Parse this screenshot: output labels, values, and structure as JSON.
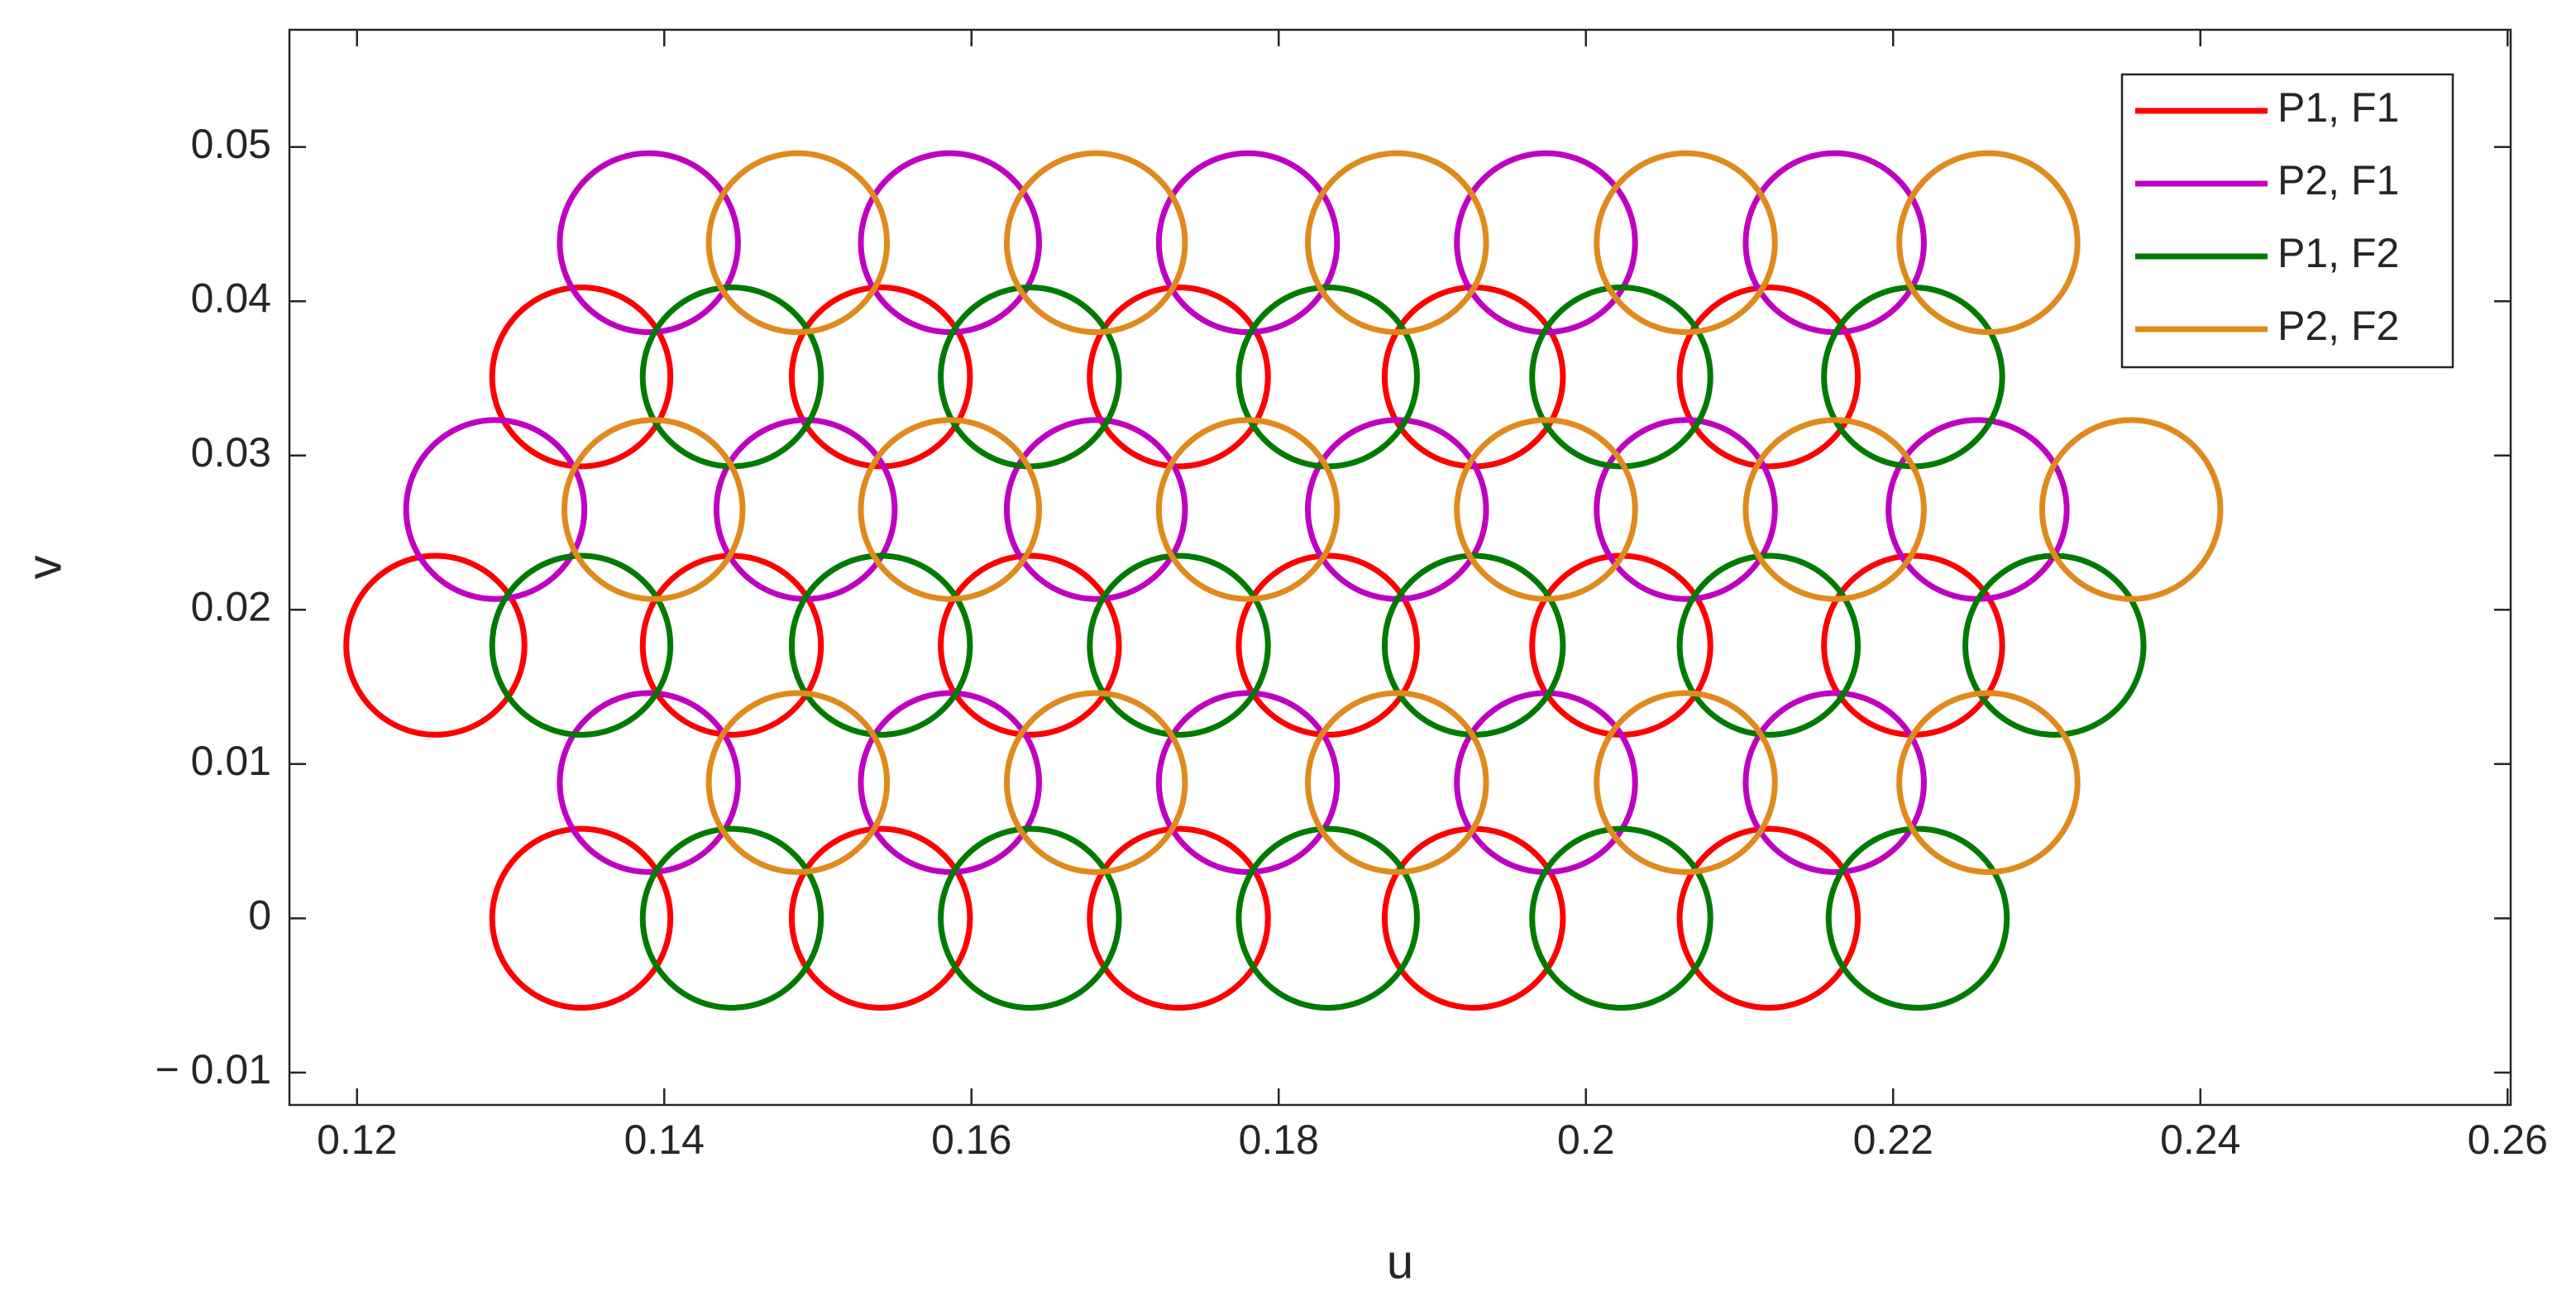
{
  "chart_data": {
    "type": "circles",
    "x_label": "u",
    "y_label": "v",
    "xlim": [
      0.1156,
      0.2602
    ],
    "ylim": [
      -0.0121,
      0.0576
    ],
    "xticks": [
      0.12,
      0.14,
      0.16,
      0.18,
      0.2,
      0.22,
      0.24,
      0.26
    ],
    "yticks": [
      {
        "value": -0.01,
        "label": "− 0.01"
      },
      0,
      0.01,
      0.02,
      0.03,
      0.04,
      0.05
    ],
    "radius": 0.0058,
    "legend": "upper-right",
    "series": [
      {
        "name": "P1, F1",
        "color": "#ff0000",
        "x": [
          0.1346,
          0.1541,
          0.1735,
          0.1927,
          0.2119,
          0.1251,
          0.1444,
          0.1638,
          0.1832,
          0.2023,
          0.2213,
          0.1346,
          0.1541,
          0.1735,
          0.1927,
          0.2119
        ],
        "y": [
          0,
          0,
          0,
          0,
          0,
          0.0177,
          0.0177,
          0.0177,
          0.0177,
          0.0177,
          0.0177,
          0.0351,
          0.0351,
          0.0351,
          0.0351,
          0.0351
        ]
      },
      {
        "name": "P2, F1",
        "color": "#c000c0",
        "x": [
          0.139,
          0.1586,
          0.178,
          0.1974,
          0.2162,
          0.129,
          0.1492,
          0.1681,
          0.1877,
          0.2065,
          0.2255,
          0.139,
          0.1586,
          0.178,
          0.1974,
          0.2162
        ],
        "y": [
          0.0088,
          0.0088,
          0.0088,
          0.0088,
          0.0088,
          0.0265,
          0.0265,
          0.0265,
          0.0265,
          0.0265,
          0.0265,
          0.0438,
          0.0438,
          0.0438,
          0.0438,
          0.0438
        ]
      },
      {
        "name": "P1, F2",
        "color": "#007a00",
        "x": [
          0.1444,
          0.1638,
          0.1832,
          0.2023,
          0.2216,
          0.1346,
          0.1541,
          0.1735,
          0.1927,
          0.2119,
          0.2305,
          0.1444,
          0.1638,
          0.1832,
          0.2023,
          0.2213
        ],
        "y": [
          0,
          0,
          0,
          0,
          0,
          0.0177,
          0.0177,
          0.0177,
          0.0177,
          0.0177,
          0.0177,
          0.0351,
          0.0351,
          0.0351,
          0.0351,
          0.0351
        ]
      },
      {
        "name": "P2, F2",
        "color": "#e08a1e",
        "x": [
          0.1487,
          0.1681,
          0.1877,
          0.2065,
          0.2262,
          0.1393,
          0.1586,
          0.178,
          0.1974,
          0.2162,
          0.2355,
          0.1487,
          0.1681,
          0.1877,
          0.2065,
          0.2262
        ],
        "y": [
          0.0088,
          0.0088,
          0.0088,
          0.0088,
          0.0088,
          0.0265,
          0.0265,
          0.0265,
          0.0265,
          0.0265,
          0.0265,
          0.0438,
          0.0438,
          0.0438,
          0.0438,
          0.0438
        ]
      }
    ]
  }
}
